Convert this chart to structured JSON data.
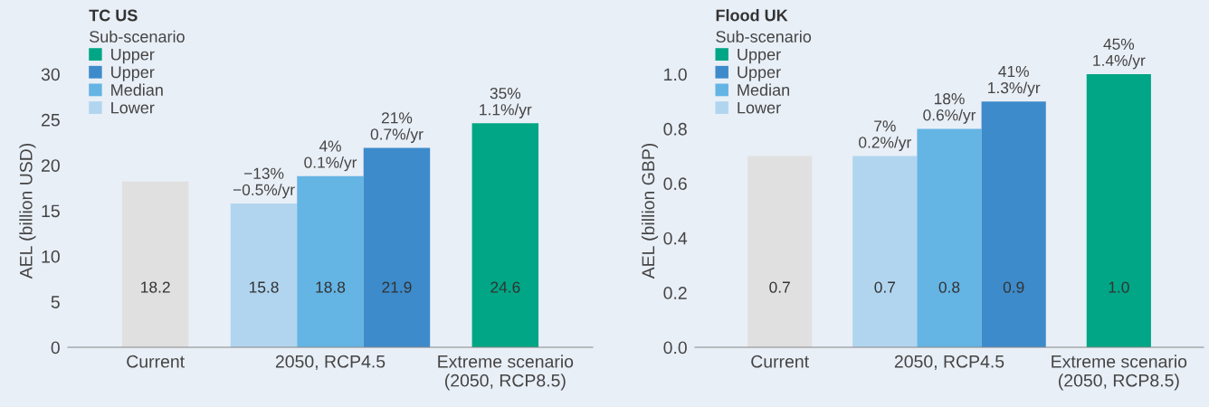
{
  "chart_data": [
    {
      "type": "bar",
      "title": "TC US",
      "ylabel": "AEL (billion USD)",
      "categories": [
        "Current",
        "2050, RCP4.5",
        "Extreme scenario\n(2050, RCP8.5)"
      ],
      "series": [
        {
          "color": "#e0e0e0",
          "values": [
            18.2,
            null,
            null
          ],
          "value_labels": [
            "18.2",
            null,
            null
          ]
        },
        {
          "name": "Lower",
          "color": "#b1d5ef",
          "values": [
            null,
            15.8,
            null
          ],
          "value_labels": [
            null,
            "15.8",
            null
          ]
        },
        {
          "name": "Median",
          "color": "#64b4e4",
          "values": [
            null,
            18.8,
            null
          ],
          "value_labels": [
            null,
            "18.8",
            null
          ]
        },
        {
          "name": "Upper",
          "color": "#3d8bcb",
          "values": [
            null,
            21.9,
            null
          ],
          "value_labels": [
            null,
            "21.9",
            null
          ]
        },
        {
          "name": "Upper",
          "color": "#00a685",
          "values": [
            null,
            null,
            24.6
          ],
          "value_labels": [
            null,
            null,
            "24.6"
          ]
        }
      ],
      "legend_title": "Sub-scenario",
      "legend": "top left",
      "grid": false,
      "ylim": [
        0,
        30
      ],
      "yticks": [
        0,
        5,
        10,
        15,
        20,
        25,
        30
      ],
      "annotations": [
        "−13%\n−0.5%/yr",
        "4%\n0.1%/yr",
        "21%\n0.7%/yr",
        "35%\n1.1%/yr"
      ]
    },
    {
      "type": "bar",
      "title": "Flood UK",
      "ylabel": "AEL (billion GBP)",
      "categories": [
        "Current",
        "2050, RCP4.5",
        "Extreme scenario\n(2050, RCP8.5)"
      ],
      "series": [
        {
          "color": "#e0e0e0",
          "values": [
            0.7,
            null,
            null
          ],
          "value_labels": [
            "0.7",
            null,
            null
          ]
        },
        {
          "name": "Lower",
          "color": "#b1d5ef",
          "values": [
            null,
            0.7,
            null
          ],
          "value_labels": [
            null,
            "0.7",
            null
          ]
        },
        {
          "name": "Median",
          "color": "#64b4e4",
          "values": [
            null,
            0.8,
            null
          ],
          "value_labels": [
            null,
            "0.8",
            null
          ]
        },
        {
          "name": "Upper",
          "color": "#3d8bcb",
          "values": [
            null,
            0.9,
            null
          ],
          "value_labels": [
            null,
            "0.9",
            null
          ]
        },
        {
          "name": "Upper",
          "color": "#00a685",
          "values": [
            null,
            null,
            1.0
          ],
          "value_labels": [
            null,
            null,
            "1.0"
          ]
        }
      ],
      "legend_title": "Sub-scenario",
      "legend": "top left",
      "grid": false,
      "ylim": [
        0,
        1.0
      ],
      "yticks": [
        {
          "value": 0,
          "label": "0.0"
        },
        0.2,
        0.4,
        0.6,
        0.8,
        {
          "value": 1,
          "label": "1.0"
        }
      ],
      "annotations": [
        "7%\n0.2%/yr",
        "18%\n0.6%/yr",
        "41%\n1.3%/yr",
        "45%\n1.4%/yr"
      ]
    }
  ]
}
